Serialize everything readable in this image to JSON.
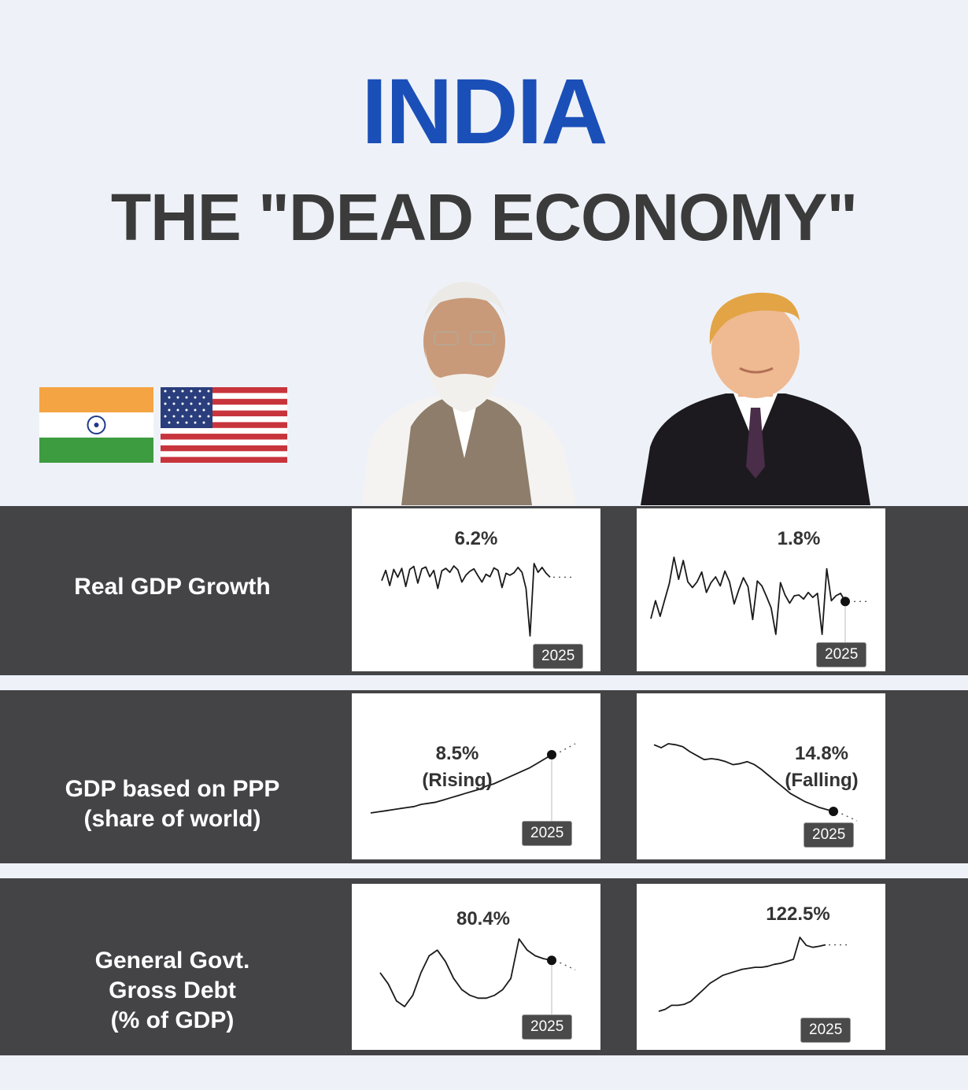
{
  "header": {
    "title": "INDIA",
    "subtitle": "THE \"DEAD ECONOMY\""
  },
  "icons": {
    "india_flag": "flag-india-icon",
    "usa_flag": "flag-usa-icon"
  },
  "colors": {
    "title_blue": "#1b4fb8",
    "band_gray": "#444346",
    "line": "#1a1a1a"
  },
  "rows": [
    {
      "label": "Real GDP Growth",
      "india": {
        "value": "6.2%",
        "year": "2025"
      },
      "usa": {
        "value": "1.8%",
        "year": "2025"
      }
    },
    {
      "label": "GDP based on PPP\n(share of world)",
      "india": {
        "value": "8.5%\n(Rising)",
        "year": "2025"
      },
      "usa": {
        "value": "14.8%\n(Falling)",
        "year": "2025"
      }
    },
    {
      "label": "General Govt.\nGross Debt\n(% of GDP)",
      "india": {
        "value": "80.4%",
        "year": "2025"
      },
      "usa": {
        "value": "122.5%",
        "year": "2025"
      }
    }
  ],
  "chart_data": [
    {
      "type": "line",
      "series": [
        {
          "values": [
            5.5,
            7.6,
            4.5,
            7.8,
            6.2,
            8.0,
            4.3,
            7.8,
            8.4,
            5.0,
            7.9,
            8.3,
            6.3,
            7.6,
            3.9,
            7.5,
            8.0,
            7.2,
            8.5,
            7.7,
            5.2,
            6.6,
            7.4,
            7.9,
            6.5,
            5.2,
            6.8,
            6.3,
            8.1,
            7.6,
            4.1,
            7.0,
            6.6,
            7.1,
            8.2,
            7.2,
            3.9,
            -5.8,
            9.0,
            7.2,
            8.2,
            7.0,
            6.2
          ]
        }
      ],
      "marker_year": "2025"
    },
    {
      "type": "line",
      "series": [
        {
          "values": [
            -0.3,
            1.9,
            0.0,
            2.0,
            4.0,
            7.2,
            4.5,
            6.8,
            4.2,
            3.5,
            4.2,
            5.4,
            2.9,
            4.1,
            4.8,
            3.7,
            5.5,
            4.2,
            1.5,
            3.2,
            4.7,
            3.6,
            -0.4,
            4.3,
            3.7,
            2.4,
            1.0,
            -2.2,
            4.1,
            2.6,
            1.6,
            2.5,
            2.6,
            2.1,
            2.9,
            2.3,
            2.8,
            -2.2,
            5.8,
            1.9,
            2.5,
            2.8,
            1.8
          ]
        }
      ],
      "marker_year": "2025"
    },
    {
      "type": "line",
      "series": [
        {
          "values": [
            3.1,
            3.2,
            3.3,
            3.4,
            3.5,
            3.6,
            3.7,
            3.9,
            4.0,
            4.1,
            4.3,
            4.5,
            4.7,
            4.9,
            5.1,
            5.3,
            5.6,
            5.8,
            6.1,
            6.4,
            6.7,
            7.0,
            7.3,
            7.7,
            8.1,
            8.5
          ]
        }
      ],
      "marker_year": "2025"
    },
    {
      "type": "line",
      "series": [
        {
          "values": [
            21.5,
            21.2,
            21.6,
            21.5,
            21.3,
            20.8,
            20.4,
            20.0,
            20.1,
            20.0,
            19.8,
            19.5,
            19.6,
            19.8,
            19.5,
            19.0,
            18.4,
            17.8,
            17.2,
            16.6,
            16.2,
            15.8,
            15.5,
            15.2,
            15.0,
            14.8
          ]
        }
      ],
      "marker_year": "2025"
    },
    {
      "type": "line",
      "series": [
        {
          "values": [
            76,
            72,
            66,
            64,
            68,
            76,
            82,
            84,
            80,
            74,
            70,
            68,
            67,
            67,
            68,
            70,
            74,
            88,
            84,
            82,
            81,
            80.4
          ]
        }
      ],
      "marker_year": "2025"
    },
    {
      "type": "line",
      "series": [
        {
          "values": [
            56,
            58,
            62,
            62,
            63,
            66,
            72,
            78,
            84,
            88,
            92,
            94,
            96,
            98,
            99,
            100,
            100,
            101,
            103,
            104,
            106,
            108,
            130,
            122,
            120,
            121,
            122.5
          ]
        }
      ],
      "marker_year": "2025"
    }
  ]
}
